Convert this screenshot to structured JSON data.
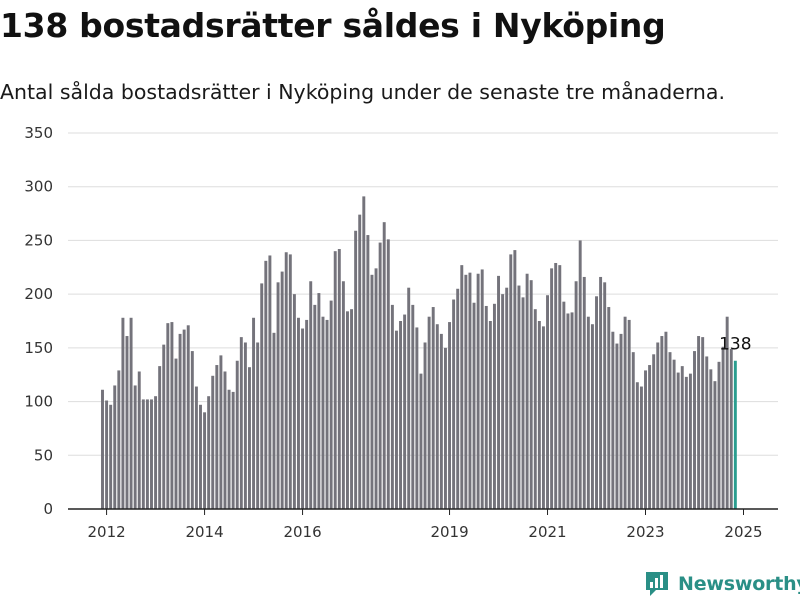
{
  "header": {
    "title": "138 bostadsrätter såldes i Nyköping",
    "subtitle": "Antal sålda bostadsrätter i Nyköping under de senaste tre månaderna."
  },
  "brand": {
    "name": "Newsworthy",
    "color": "#2a8f86"
  },
  "colors": {
    "bar": "#74737b",
    "highlight": "#2a9d8f",
    "grid": "#dddddd",
    "axis": "#222222"
  },
  "chart_data": {
    "type": "bar",
    "title": "138 bostadsrätter såldes i Nyköping",
    "subtitle": "Antal sålda bostadsrätter i Nyköping under de senaste tre månaderna.",
    "xlabel": "",
    "ylabel": "",
    "ylim": [
      0,
      350
    ],
    "yticks": [
      0,
      50,
      100,
      150,
      200,
      250,
      300,
      350
    ],
    "xticks": [
      "2012",
      "2014",
      "2016",
      "2019",
      "2021",
      "2023",
      "2025"
    ],
    "x_start": "2011-12",
    "x_end": "2025-01",
    "grid": true,
    "annotation": {
      "text": "138",
      "value": 138
    },
    "values": [
      111,
      101,
      97,
      115,
      129,
      178,
      161,
      178,
      115,
      128,
      102,
      102,
      102,
      105,
      133,
      153,
      173,
      174,
      140,
      163,
      167,
      171,
      147,
      114,
      97,
      90,
      105,
      124,
      134,
      143,
      128,
      111,
      109,
      138,
      160,
      155,
      132,
      178,
      155,
      210,
      231,
      236,
      164,
      211,
      221,
      239,
      237,
      200,
      178,
      168,
      176,
      212,
      190,
      201,
      179,
      176,
      194,
      240,
      242,
      212,
      184,
      186,
      259,
      274,
      291,
      255,
      218,
      224,
      248,
      267,
      251,
      190,
      166,
      175,
      181,
      206,
      190,
      169,
      126,
      155,
      179,
      188,
      172,
      163,
      150,
      174,
      195,
      205,
      227,
      218,
      220,
      192,
      219,
      223,
      189,
      175,
      191,
      217,
      200,
      206,
      237,
      241,
      208,
      197,
      219,
      213,
      186,
      175,
      170,
      199,
      224,
      229,
      227,
      193,
      182,
      183,
      212,
      250,
      216,
      179,
      172,
      198,
      216,
      211,
      188,
      165,
      154,
      163,
      179,
      176,
      146,
      118,
      114,
      129,
      134,
      144,
      155,
      161,
      165,
      146,
      139,
      127,
      133,
      123,
      126,
      147,
      161,
      160,
      142,
      130,
      119,
      137,
      151,
      179,
      149,
      138
    ]
  }
}
